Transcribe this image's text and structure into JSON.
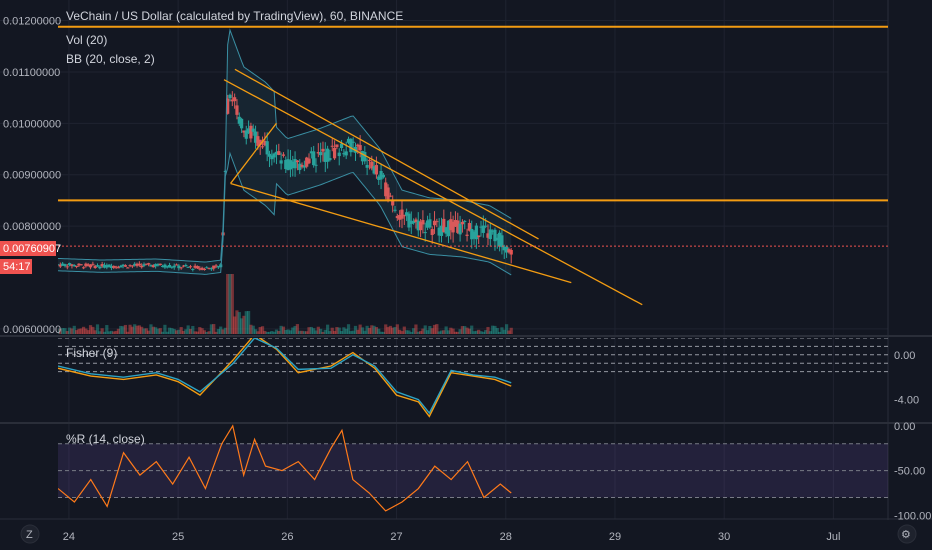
{
  "header": {
    "title": "VeChain / US Dollar (calculated by TradingView), 60, BINANCE",
    "vol_label": "Vol (20)",
    "bb_label": "BB (20, close, 2)"
  },
  "price_badge": {
    "value": "0.00760907",
    "timer": "54:17"
  },
  "corner": {
    "left": "Z",
    "right": "⚙"
  },
  "colors": {
    "up": "#26a69a",
    "down": "#ef5350",
    "trend": "#f39c12",
    "bb": "#3a8fa3",
    "fisher1": "#f39c12",
    "fisher2": "#2ea3c3",
    "wr": "#ff7a1a",
    "badge": "#ef5350"
  },
  "chart_data": [
    {
      "type": "candlestick",
      "title": "VeChain / US Dollar (calculated by TradingView), 60, BINANCE",
      "y_ticks": [
        "0.01200000",
        "0.01100000",
        "0.01000000",
        "0.00900000",
        "0.00800000",
        "0.00600000"
      ],
      "y_tick_values": [
        0.012,
        0.011,
        0.01,
        0.009,
        0.008,
        0.006
      ],
      "ylim": [
        0.0059,
        0.0124
      ],
      "x_ticks": [
        "24",
        "25",
        "26",
        "27",
        "28",
        "29",
        "30",
        "Jul"
      ],
      "x_tick_values": [
        24,
        25,
        26,
        27,
        28,
        29,
        30,
        31
      ],
      "xlim": [
        23.9,
        31.5
      ],
      "last_price": 0.00760907,
      "horizontal_levels": [
        0.01188,
        0.0085
      ],
      "trendlines": [
        {
          "from": [
            25.52,
            0.01105
          ],
          "to": [
            28.3,
            0.00775
          ]
        },
        {
          "from": [
            25.48,
            0.00883
          ],
          "to": [
            28.6,
            0.0069
          ]
        },
        {
          "from": [
            25.42,
            0.01085
          ],
          "to": [
            29.25,
            0.00647
          ]
        },
        {
          "from": [
            25.48,
            0.00883
          ],
          "to": [
            25.9,
            0.01
          ]
        }
      ],
      "anchors": [
        [
          23.9,
          0.00725
        ],
        [
          24.3,
          0.00722
        ],
        [
          24.8,
          0.00724
        ],
        [
          25.25,
          0.00718
        ],
        [
          25.4,
          0.00722
        ],
        [
          25.46,
          0.0107
        ],
        [
          25.6,
          0.0099
        ],
        [
          25.8,
          0.0096
        ],
        [
          26.0,
          0.00915
        ],
        [
          26.3,
          0.00935
        ],
        [
          26.6,
          0.0096
        ],
        [
          26.85,
          0.00895
        ],
        [
          27.05,
          0.00815
        ],
        [
          27.3,
          0.008
        ],
        [
          27.6,
          0.00795
        ],
        [
          27.85,
          0.00785
        ],
        [
          28.05,
          0.0076
        ]
      ],
      "volume": "histogram at bottom of price pane, spike near 25.45"
    },
    {
      "type": "line",
      "title": "Fisher (9)",
      "y_ticks": [
        "0.00",
        "-4.00"
      ],
      "y_tick_values": [
        0,
        -4
      ],
      "ylim": [
        -6,
        1.5
      ],
      "dashed_levels": [
        1.5,
        0.75,
        0,
        -0.75,
        -1.5
      ],
      "series": [
        {
          "color": "#f39c12",
          "x": [
            23.9,
            24.2,
            24.5,
            24.8,
            25.0,
            25.2,
            25.5,
            25.7,
            25.9,
            26.1,
            26.4,
            26.6,
            26.8,
            27.0,
            27.2,
            27.3,
            27.5,
            27.7,
            27.9,
            28.05
          ],
          "values": [
            -1.2,
            -1.9,
            -2.2,
            -1.8,
            -2.4,
            -3.6,
            -0.5,
            1.8,
            0.5,
            -1.6,
            -1.0,
            0.2,
            -1.2,
            -3.6,
            -4.2,
            -5.5,
            -1.6,
            -1.9,
            -2.2,
            -2.8
          ]
        },
        {
          "color": "#2ea3c3",
          "x": [
            23.9,
            24.2,
            24.5,
            24.8,
            25.0,
            25.2,
            25.5,
            25.7,
            25.9,
            26.1,
            26.4,
            26.6,
            26.8,
            27.0,
            27.2,
            27.3,
            27.5,
            27.7,
            27.9,
            28.05
          ],
          "values": [
            -1.0,
            -1.7,
            -2.0,
            -1.6,
            -2.2,
            -3.3,
            -0.8,
            1.5,
            0.6,
            -1.3,
            -1.2,
            0.0,
            -1.0,
            -3.3,
            -4.0,
            -5.2,
            -1.4,
            -1.8,
            -2.0,
            -2.5
          ]
        }
      ],
      "xlim": [
        23.9,
        31.5
      ]
    },
    {
      "type": "line",
      "title": "%R (14, close)",
      "y_ticks": [
        "0.00",
        "-50.00",
        "-100.00"
      ],
      "y_tick_values": [
        0,
        -50,
        -100
      ],
      "ylim": [
        -104,
        2
      ],
      "band": [
        -20,
        -80
      ],
      "series": [
        {
          "color": "#ff7a1a",
          "x": [
            23.9,
            24.05,
            24.2,
            24.35,
            24.5,
            24.65,
            24.8,
            24.95,
            25.1,
            25.25,
            25.4,
            25.5,
            25.6,
            25.7,
            25.8,
            25.95,
            26.1,
            26.25,
            26.4,
            26.5,
            26.6,
            26.75,
            26.9,
            27.05,
            27.2,
            27.35,
            27.5,
            27.65,
            27.8,
            27.95,
            28.05
          ],
          "values": [
            -70,
            -85,
            -60,
            -90,
            -30,
            -55,
            -40,
            -65,
            -35,
            -70,
            -20,
            0,
            -55,
            -15,
            -45,
            -50,
            -40,
            -60,
            -25,
            -5,
            -60,
            -75,
            -95,
            -85,
            -70,
            -45,
            -60,
            -40,
            -80,
            -65,
            -75
          ]
        }
      ],
      "xlim": [
        23.9,
        31.5
      ]
    }
  ]
}
